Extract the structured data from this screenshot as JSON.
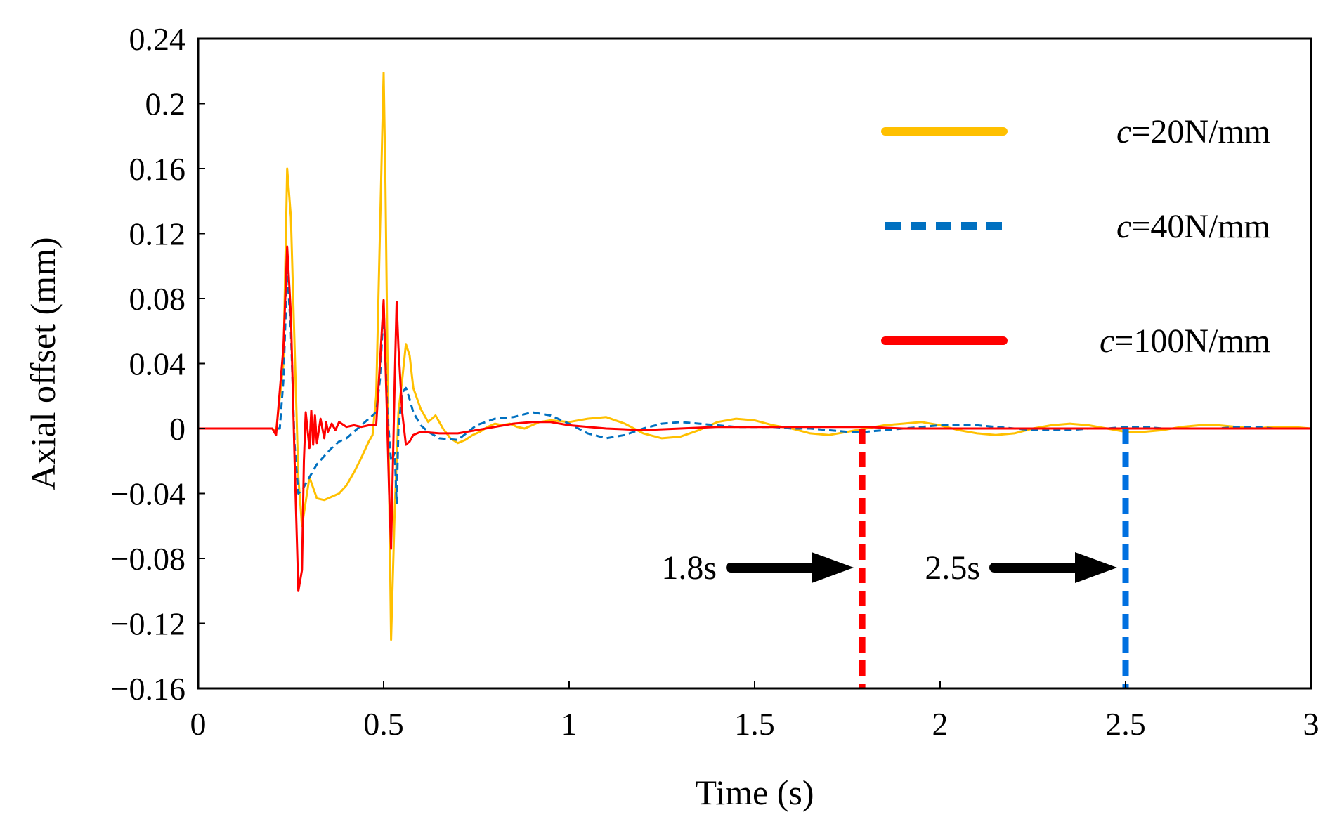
{
  "chart_data": {
    "type": "line",
    "title": "",
    "xlabel": "Time (s)",
    "ylabel": "Axial offset (mm)",
    "xlim": [
      0,
      3
    ],
    "ylim": [
      -0.16,
      0.24
    ],
    "x_ticks": [
      0,
      0.5,
      1,
      1.5,
      2,
      2.5,
      3
    ],
    "x_tick_labels": [
      "0",
      "0.5",
      "1",
      "1.5",
      "2",
      "2.5",
      "3"
    ],
    "y_ticks": [
      -0.16,
      -0.12,
      -0.08,
      -0.04,
      0,
      0.04,
      0.08,
      0.12,
      0.16,
      0.2,
      0.24
    ],
    "y_tick_labels": [
      "−0.16",
      "−0.12",
      "−0.08",
      "−0.04",
      "0",
      "0.04",
      "0.08",
      "0.12",
      "0.16",
      "0.2",
      "0.24"
    ],
    "grid": false,
    "legend_position": "top-right",
    "series": [
      {
        "name": "c=20N/mm",
        "name_italic": "c",
        "name_rest": "=20N/mm",
        "color": "#FFC000",
        "dash": "solid",
        "x": [
          0,
          0.2,
          0.21,
          0.23,
          0.24,
          0.25,
          0.26,
          0.27,
          0.28,
          0.3,
          0.32,
          0.34,
          0.36,
          0.38,
          0.4,
          0.42,
          0.44,
          0.46,
          0.47,
          0.48,
          0.49,
          0.5,
          0.505,
          0.51,
          0.52,
          0.53,
          0.54,
          0.55,
          0.56,
          0.57,
          0.58,
          0.6,
          0.62,
          0.64,
          0.66,
          0.68,
          0.7,
          0.72,
          0.74,
          0.76,
          0.78,
          0.8,
          0.82,
          0.84,
          0.86,
          0.88,
          0.9,
          0.92,
          0.95,
          1.0,
          1.05,
          1.1,
          1.15,
          1.2,
          1.25,
          1.3,
          1.35,
          1.4,
          1.45,
          1.5,
          1.55,
          1.6,
          1.65,
          1.7,
          1.75,
          1.8,
          1.85,
          1.9,
          1.95,
          2.0,
          2.05,
          2.1,
          2.15,
          2.2,
          2.25,
          2.3,
          2.35,
          2.4,
          2.45,
          2.5,
          2.55,
          2.6,
          2.65,
          2.7,
          2.75,
          2.8,
          2.85,
          2.9,
          2.95,
          3.0
        ],
        "y": [
          0,
          0,
          -0.002,
          0.04,
          0.16,
          0.13,
          0.05,
          -0.03,
          -0.06,
          -0.03,
          -0.043,
          -0.044,
          -0.042,
          -0.04,
          -0.035,
          -0.027,
          -0.018,
          -0.008,
          -0.004,
          0.02,
          0.12,
          0.219,
          0.15,
          0.05,
          -0.13,
          -0.05,
          0.01,
          0.03,
          0.052,
          0.045,
          0.025,
          0.012,
          0.004,
          0.008,
          0.0,
          -0.006,
          -0.009,
          -0.007,
          -0.004,
          -0.002,
          0.001,
          0.003,
          0.002,
          0.003,
          0.001,
          0.0,
          0.002,
          0.004,
          0.005,
          0.004,
          0.006,
          0.007,
          0.003,
          -0.003,
          -0.006,
          -0.005,
          -0.001,
          0.004,
          0.006,
          0.005,
          0.002,
          0.0,
          -0.003,
          -0.004,
          -0.002,
          0.0,
          0.002,
          0.003,
          0.004,
          0.002,
          -0.001,
          -0.003,
          -0.004,
          -0.003,
          0.0,
          0.002,
          0.003,
          0.002,
          0.0,
          -0.002,
          -0.002,
          -0.001,
          0.001,
          0.002,
          0.002,
          0.001,
          0.0,
          0.001,
          0.001,
          0.0
        ]
      },
      {
        "name": "c=40N/mm",
        "name_italic": "c",
        "name_rest": "=40N/mm",
        "color": "#0070C0",
        "dash": "dashed",
        "x": [
          0,
          0.2,
          0.22,
          0.23,
          0.24,
          0.25,
          0.26,
          0.27,
          0.28,
          0.3,
          0.32,
          0.34,
          0.36,
          0.38,
          0.4,
          0.42,
          0.44,
          0.46,
          0.48,
          0.49,
          0.5,
          0.51,
          0.52,
          0.53,
          0.535,
          0.54,
          0.55,
          0.56,
          0.57,
          0.58,
          0.6,
          0.62,
          0.65,
          0.7,
          0.75,
          0.8,
          0.85,
          0.9,
          0.95,
          1.0,
          1.05,
          1.1,
          1.15,
          1.2,
          1.25,
          1.3,
          1.35,
          1.4,
          1.45,
          1.5,
          1.55,
          1.6,
          1.65,
          1.7,
          1.75,
          1.8,
          1.85,
          1.9,
          1.95,
          2.0,
          2.05,
          2.1,
          2.15,
          2.2,
          2.25,
          2.3,
          2.35,
          2.4,
          2.45,
          2.5,
          2.55,
          2.6,
          2.65,
          2.7,
          2.75,
          2.8,
          2.85,
          2.9,
          2.95,
          3.0
        ],
        "y": [
          0,
          0,
          0.0,
          0.03,
          0.098,
          0.06,
          -0.01,
          -0.04,
          -0.038,
          -0.03,
          -0.022,
          -0.017,
          -0.012,
          -0.008,
          -0.006,
          -0.002,
          0.002,
          0.006,
          0.01,
          0.03,
          0.075,
          0.01,
          -0.02,
          -0.015,
          -0.046,
          0.0,
          0.022,
          0.025,
          0.018,
          0.01,
          0.002,
          -0.002,
          -0.006,
          -0.007,
          0.002,
          0.006,
          0.007,
          0.01,
          0.008,
          0.003,
          -0.003,
          -0.006,
          -0.004,
          0.0,
          0.003,
          0.004,
          0.003,
          0.002,
          0.001,
          0.001,
          0.001,
          0.0,
          0.0,
          -0.001,
          -0.002,
          -0.002,
          -0.001,
          0.0,
          0.001,
          0.002,
          0.002,
          0.002,
          0.001,
          0.0,
          -0.001,
          -0.001,
          -0.001,
          0.0,
          0.0,
          0.001,
          0.001,
          0.0,
          0.0,
          0.0,
          0.0,
          0.001,
          0.001,
          0.0,
          0.0,
          0.0
        ]
      },
      {
        "name": "c=100N/mm",
        "name_italic": "c",
        "name_rest": "=100N/mm",
        "color": "#FF0000",
        "dash": "solid",
        "x": [
          0,
          0.2,
          0.21,
          0.23,
          0.24,
          0.25,
          0.26,
          0.27,
          0.28,
          0.285,
          0.29,
          0.3,
          0.305,
          0.31,
          0.315,
          0.32,
          0.33,
          0.34,
          0.345,
          0.35,
          0.36,
          0.37,
          0.38,
          0.4,
          0.42,
          0.44,
          0.46,
          0.48,
          0.49,
          0.5,
          0.51,
          0.515,
          0.52,
          0.53,
          0.535,
          0.54,
          0.55,
          0.56,
          0.57,
          0.58,
          0.6,
          0.65,
          0.7,
          0.75,
          0.8,
          0.85,
          0.9,
          0.95,
          1.0,
          1.1,
          1.2,
          1.3,
          1.4,
          1.5,
          1.6,
          1.7,
          1.8,
          1.9,
          2.0,
          2.1,
          2.2,
          2.3,
          2.4,
          2.5,
          2.6,
          2.7,
          2.8,
          2.9,
          3.0
        ],
        "y": [
          0,
          0,
          -0.004,
          0.05,
          0.112,
          0.07,
          -0.02,
          -0.1,
          -0.087,
          -0.02,
          0.01,
          -0.012,
          0.011,
          -0.01,
          0.008,
          -0.009,
          0.006,
          -0.006,
          0.004,
          -0.002,
          0.003,
          -0.001,
          0.004,
          0.001,
          0.002,
          0.001,
          0.002,
          0.002,
          0.04,
          0.079,
          0.0,
          -0.04,
          -0.074,
          0.03,
          0.078,
          0.05,
          0.01,
          -0.01,
          -0.008,
          -0.004,
          -0.002,
          -0.003,
          -0.003,
          -0.001,
          0.001,
          0.003,
          0.004,
          0.004,
          0.002,
          0.0,
          -0.001,
          0.0,
          0.001,
          0.001,
          0.001,
          0.001,
          0.001,
          0.0,
          0.0,
          0.0,
          0.0,
          0.0,
          0.0,
          0.0,
          0.0,
          0.0,
          0.0,
          0.0,
          0.0
        ]
      }
    ],
    "annotations": [
      {
        "label": "1.8s",
        "x": 1.79,
        "color": "#FF0000"
      },
      {
        "label": "2.5s",
        "x": 2.5,
        "color": "#0070E0"
      }
    ]
  }
}
